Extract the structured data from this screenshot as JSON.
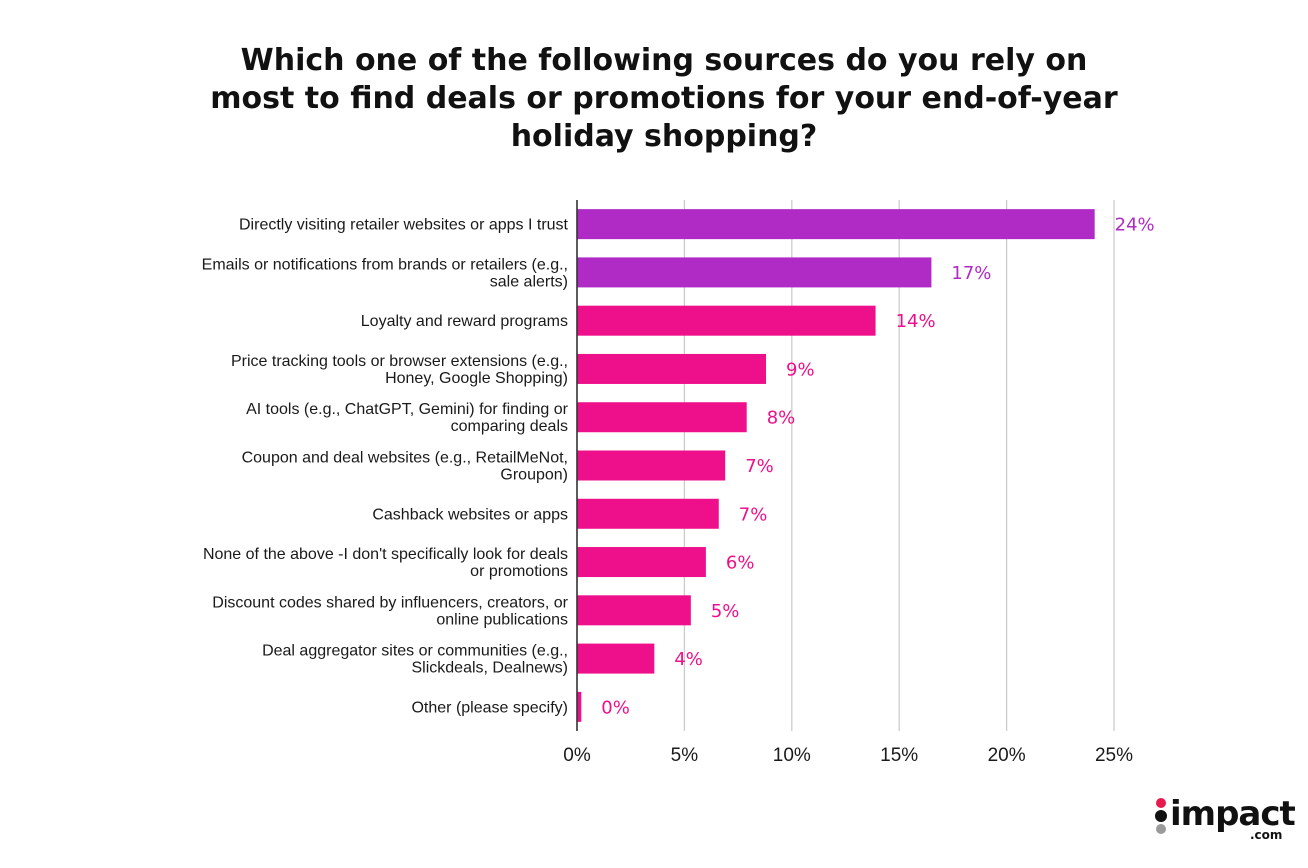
{
  "chart_data": {
    "type": "bar",
    "orientation": "horizontal",
    "title": "Which one of the following sources do you rely on most to find deals or promotions for your end-of-year holiday shopping?",
    "categories": [
      "Directly visiting retailer websites or apps I trust",
      "Emails or notifications from brands or retailers (e.g., sale alerts)",
      "Loyalty and reward programs",
      "Price tracking tools or browser extensions (e.g., Honey, Google Shopping)",
      "AI tools (e.g., ChatGPT, Gemini) for finding or comparing deals",
      "Coupon and deal websites (e.g., RetailMeNot, Groupon)",
      "Cashback websites or apps",
      "None of the above -I don't specifically look for deals or promotions",
      "Discount codes shared by influencers, creators, or online publications",
      "Deal aggregator sites or communities (e.g., Slickdeals, Dealnews)",
      "Other (please specify)"
    ],
    "category_lines": [
      [
        "Directly visiting retailer websites or apps I trust"
      ],
      [
        "Emails or notifications from brands or retailers (e.g.,",
        "sale alerts)"
      ],
      [
        "Loyalty and reward programs"
      ],
      [
        "Price tracking tools or browser extensions (e.g.,",
        "Honey, Google Shopping)"
      ],
      [
        "AI tools (e.g., ChatGPT, Gemini) for finding or",
        "comparing deals"
      ],
      [
        "Coupon and deal websites (e.g., RetailMeNot,",
        "Groupon)"
      ],
      [
        "Cashback websites or apps"
      ],
      [
        "None of the above -I don't specifically look for deals",
        "or promotions"
      ],
      [
        "Discount codes shared by influencers, creators, or",
        "online publications"
      ],
      [
        "Deal aggregator sites or communities (e.g.,",
        "Slickdeals, Dealnews)"
      ],
      [
        "Other (please specify)"
      ]
    ],
    "values": [
      24.1,
      16.5,
      13.9,
      8.8,
      7.9,
      6.9,
      6.6,
      6.0,
      5.3,
      3.6,
      0.2
    ],
    "data_labels": [
      "24%",
      "17%",
      "14%",
      "9%",
      "8%",
      "7%",
      "7%",
      "6%",
      "5%",
      "4%",
      "0%"
    ],
    "bar_colors": [
      "#b02ac6",
      "#b02ac6",
      "#ee0f8a",
      "#ee0f8a",
      "#ee0f8a",
      "#ee0f8a",
      "#ee0f8a",
      "#ee0f8a",
      "#ee0f8a",
      "#ee0f8a",
      "#ee0f8a"
    ],
    "label_colors": [
      "#b02ac6",
      "#b02ac6",
      "#ee0f8a",
      "#ee0f8a",
      "#ee0f8a",
      "#ee0f8a",
      "#ee0f8a",
      "#ee0f8a",
      "#ee0f8a",
      "#ee0f8a",
      "#ee0f8a"
    ],
    "xlim": [
      0,
      25
    ],
    "xticks": [
      0,
      5,
      10,
      15,
      20,
      25
    ],
    "xtick_labels": [
      "0%",
      "5%",
      "10%",
      "15%",
      "20%",
      "25%"
    ],
    "grid": true,
    "legend": false,
    "gridline_color": "#cccccc",
    "axis_color": "#333333"
  },
  "brand": {
    "logo_text": "impact",
    "logo_suffix": ".com",
    "dot_colors": [
      "#e8194d",
      "#111111",
      "#9a9a9a"
    ]
  }
}
